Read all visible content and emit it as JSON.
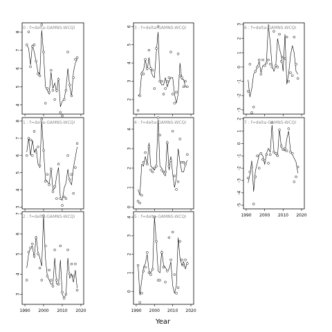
{
  "xlabel": "Year",
  "chart_data": [
    {
      "type": "line",
      "title": "0 : f=delta-GAMNS-WCQI",
      "ylim": [
        3.5,
        8.5
      ],
      "yticks": [
        4,
        5,
        6,
        7,
        8
      ],
      "x": [
        1991,
        1992,
        1993,
        1994,
        1995,
        1996,
        1997,
        1998,
        1999,
        2000,
        2001,
        2002,
        2003,
        2004,
        2005,
        2006,
        2007,
        2008,
        2009,
        2010,
        2011,
        2012,
        2013,
        2014,
        2015,
        2016,
        2017,
        2018
      ],
      "line": [
        7.3,
        7.1,
        6.2,
        7.3,
        6.9,
        6.4,
        5.8,
        5.7,
        8.1,
        6.8,
        5.0,
        4.8,
        4.6,
        5.8,
        4.9,
        5.2,
        4.7,
        5.5,
        3.9,
        4.2,
        4.3,
        4.9,
        6.0,
        5.0,
        4.5,
        5.8,
        6.3,
        6.5
      ],
      "points": [
        7.3,
        8.0,
        6.1,
        7.2,
        7.3,
        6.4,
        5.7,
        5.6,
        8.4,
        6.9,
        4.1,
        4.9,
        4.7,
        5.9,
        4.8,
        4.3,
        4.8,
        5.4,
        3.6,
        3.4,
        4.3,
        4.8,
        6.9,
        5.1,
        4.5,
        5.5,
        6.5,
        6.6
      ]
    },
    {
      "type": "line",
      "title": "3 : f=delta-GAMNS-WCQI",
      "ylim": [
        1.2,
        6.2
      ],
      "yticks": [
        2,
        3,
        4,
        5,
        6
      ],
      "x": [
        1991,
        1992,
        1993,
        1994,
        1995,
        1996,
        1997,
        1998,
        1999,
        2000,
        2001,
        2002,
        2003,
        2004,
        2005,
        2006,
        2007,
        2008,
        2009,
        2010,
        2011,
        2012,
        2013,
        2014,
        2015,
        2016,
        2017,
        2018
      ],
      "line": [
        2.2,
        2.3,
        3.5,
        3.6,
        4.2,
        3.6,
        4.3,
        3.6,
        3.3,
        3.2,
        4.6,
        5.7,
        3.0,
        2.8,
        2.8,
        3.2,
        2.7,
        3.0,
        3.2,
        3.2,
        2.3,
        1.8,
        2.3,
        4.0,
        3.1,
        3.1,
        2.7,
        2.7
      ],
      "points": [
        1.4,
        2.2,
        3.4,
        3.4,
        4.2,
        3.7,
        4.7,
        3.7,
        3.6,
        2.6,
        4.8,
        6.0,
        3.0,
        3.0,
        2.3,
        2.6,
        3.0,
        3.2,
        4.6,
        2.3,
        1.8,
        2.4,
        4.5,
        3.3,
        3.2,
        2.7,
        3.0,
        2.7
      ]
    },
    {
      "type": "line",
      "title": "6 : f=delta-GAMNS-WCQI",
      "ylim": [
        -3.3,
        3.1
      ],
      "yticks": [
        -3,
        -2,
        -1,
        0,
        1,
        2,
        3
      ],
      "x": [
        1991,
        1992,
        1993,
        1994,
        1995,
        1996,
        1997,
        1998,
        1999,
        2000,
        2001,
        2002,
        2003,
        2004,
        2005,
        2006,
        2007,
        2008,
        2009,
        2010,
        2011,
        2012,
        2013,
        2014,
        2015,
        2016,
        2017,
        2018
      ],
      "line": [
        -0.9,
        -2.1,
        -1.5,
        -0.5,
        -0.3,
        0.0,
        0.4,
        -0.4,
        0.1,
        0.1,
        0.4,
        3.0,
        1.7,
        0.1,
        -0.3,
        0.1,
        2.0,
        1.3,
        0.8,
        -0.3,
        2.3,
        -1.2,
        -0.5,
        0.8,
        1.5,
        1.0,
        -0.3,
        -0.5
      ],
      "points": [
        -1.7,
        0.2,
        -3.2,
        -2.8,
        -0.3,
        0.0,
        0.5,
        -0.5,
        0.5,
        0.1,
        0.3,
        0.5,
        0.2,
        0.0,
        2.5,
        0.1,
        0.0,
        2.3,
        0.4,
        0.7,
        0.6,
        2.1,
        -1.0,
        -0.4,
        -0.6,
        2.1,
        0.2,
        -0.8
      ]
    },
    {
      "type": "line",
      "title": "1 : f=delta-GAMNS-WCQI",
      "ylim": [
        2.9,
        8.2
      ],
      "yticks": [
        3,
        4,
        5,
        6,
        7,
        8
      ],
      "x": [
        1991,
        1992,
        1993,
        1994,
        1995,
        1996,
        1997,
        1998,
        1999,
        2000,
        2001,
        2002,
        2003,
        2004,
        2005,
        2006,
        2007,
        2008,
        2009,
        2010,
        2011,
        2012,
        2013,
        2014,
        2015,
        2016,
        2017,
        2018
      ],
      "line": [
        6.2,
        7.0,
        6.0,
        6.9,
        6.2,
        6.4,
        5.5,
        5.3,
        8.0,
        6.3,
        4.6,
        4.5,
        4.3,
        5.3,
        4.0,
        4.1,
        4.8,
        5.3,
        3.5,
        3.4,
        4.1,
        4.4,
        5.2,
        4.5,
        4.3,
        5.3,
        5.9,
        6.5
      ],
      "points": [
        6.0,
        7.0,
        6.9,
        6.0,
        7.4,
        6.2,
        6.5,
        5.4,
        8.1,
        6.3,
        4.5,
        4.9,
        4.3,
        5.2,
        3.9,
        4.2,
        3.5,
        5.5,
        3.5,
        3.1,
        3.6,
        3.5,
        6.0,
        4.6,
        4.9,
        3.8,
        5.3,
        6.7
      ]
    },
    {
      "type": "line",
      "title": "4 : f=delta-GAMNS-WCQI",
      "ylim": [
        -0.1,
        4.6
      ],
      "yticks": [
        0,
        1,
        2,
        3,
        4
      ],
      "x": [
        1991,
        1992,
        1993,
        1994,
        1995,
        1996,
        1997,
        1998,
        1999,
        2000,
        2001,
        2002,
        2003,
        2004,
        2005,
        2006,
        2007,
        2008,
        2009,
        2010,
        2011,
        2012,
        2013,
        2014,
        2015,
        2016,
        2017,
        2018
      ],
      "line": [
        0.9,
        0.6,
        2.2,
        2.1,
        2.6,
        2.2,
        3.3,
        2.1,
        2.0,
        1.9,
        2.1,
        4.5,
        2.1,
        2.0,
        1.7,
        1.6,
        3.4,
        1.9,
        2.6,
        1.7,
        1.0,
        1.5,
        3.0,
        2.3,
        1.8,
        1.8,
        2.2,
        2.4
      ],
      "points": [
        0.3,
        0.2,
        0.6,
        2.3,
        2.8,
        2.2,
        3.1,
        1.9,
        1.8,
        2.0,
        2.1,
        4.6,
        3.7,
        1.9,
        1.8,
        1.8,
        3.3,
        2.1,
        2.4,
        3.9,
        1.6,
        0.9,
        1.3,
        3.5,
        2.3,
        2.3,
        2.2,
        2.7
      ]
    },
    {
      "type": "line",
      "title": "7 : f=delta-GAMNS-WCQI",
      "ylim": [
        -5.3,
        2.1
      ],
      "yticks": [
        -5,
        -4,
        -3,
        -2,
        -1,
        0,
        1,
        2
      ],
      "x": [
        1991,
        1992,
        1993,
        1994,
        1995,
        1996,
        1997,
        1998,
        1999,
        2000,
        2001,
        2002,
        2003,
        2004,
        2005,
        2006,
        2007,
        2008,
        2009,
        2010,
        2011,
        2012,
        2013,
        2014,
        2015,
        2016,
        2017,
        2018
      ],
      "line": [
        -3.2,
        -2.5,
        -1.4,
        -3.9,
        -2.2,
        -1.6,
        -0.9,
        -0.8,
        -1.0,
        -1.7,
        -0.8,
        -0.4,
        -0.7,
        1.5,
        -0.6,
        -0.9,
        -1.0,
        1.2,
        -0.3,
        -0.5,
        -0.6,
        0.4,
        1.0,
        -0.6,
        -0.9,
        -1.2,
        -1.5,
        -2.4
      ],
      "points": [
        -2.8,
        -2.3,
        -1.9,
        -4.9,
        -2.7,
        -1.0,
        -2.0,
        -0.8,
        -1.3,
        -1.4,
        -0.9,
        -1.6,
        -0.9,
        1.7,
        -0.7,
        -0.8,
        -1.0,
        1.1,
        -0.2,
        -0.5,
        -0.4,
        -0.6,
        1.2,
        -0.7,
        -0.8,
        -3.1,
        -2.7,
        -1.9
      ]
    },
    {
      "type": "line",
      "title": "2 : f=delta-GAMNS-WCQI",
      "ylim": [
        2.5,
        7.1
      ],
      "yticks": [
        3,
        4,
        5,
        6,
        7
      ],
      "x": [
        1991,
        1992,
        1993,
        1994,
        1995,
        1996,
        1997,
        1998,
        1999,
        2000,
        2001,
        2002,
        2003,
        2004,
        2005,
        2006,
        2007,
        2008,
        2009,
        2010,
        2011,
        2012,
        2013,
        2014,
        2015,
        2016,
        2017,
        2018
      ],
      "line": [
        4.3,
        5.0,
        5.3,
        5.4,
        4.8,
        5.9,
        5.1,
        4.8,
        4.4,
        6.9,
        4.8,
        3.9,
        3.7,
        3.5,
        3.5,
        4.8,
        3.5,
        3.5,
        4.7,
        3.0,
        2.8,
        3.0,
        4.8,
        3.8,
        4.0,
        3.6,
        4.2,
        3.3
      ],
      "points": [
        3.7,
        5.1,
        5.3,
        5.5,
        4.9,
        5.8,
        5.0,
        4.3,
        3.7,
        6.9,
        5.4,
        3.9,
        4.2,
        3.7,
        3.4,
        5.2,
        3.7,
        3.5,
        5.4,
        3.1,
        2.8,
        3.0,
        5.2,
        4.0,
        4.5,
        3.9,
        4.5,
        3.2
      ]
    },
    {
      "type": "line",
      "title": "5 : f=delta-GAMNS-WCQI",
      "ylim": [
        -0.7,
        4.3
      ],
      "yticks": [
        0,
        1,
        2,
        3,
        4
      ],
      "x": [
        1991,
        1992,
        1993,
        1994,
        1995,
        1996,
        1997,
        1998,
        1999,
        2000,
        2001,
        2002,
        2003,
        2004,
        2005,
        2006,
        2007,
        2008,
        2009,
        2010,
        2011,
        2012,
        2013,
        2014,
        2015,
        2016,
        2017,
        2018
      ],
      "line": [
        1.4,
        -0.2,
        0.6,
        1.3,
        1.5,
        2.0,
        1.1,
        1.0,
        1.2,
        4.0,
        2.7,
        1.1,
        1.0,
        2.2,
        1.4,
        1.3,
        1.1,
        1.2,
        1.6,
        0.3,
        -0.1,
        0.3,
        2.9,
        1.8,
        1.4,
        1.6,
        1.2,
        1.6
      ],
      "points": [
        1.4,
        -0.6,
        -0.1,
        1.1,
        1.3,
        2.1,
        1.0,
        0.9,
        1.2,
        4.0,
        2.7,
        0.6,
        0.6,
        2.1,
        1.3,
        0.5,
        1.1,
        2.9,
        1.7,
        3.2,
        0.9,
        -0.1,
        0.2,
        2.7,
        1.7,
        1.4,
        1.7,
        1.5
      ]
    }
  ]
}
